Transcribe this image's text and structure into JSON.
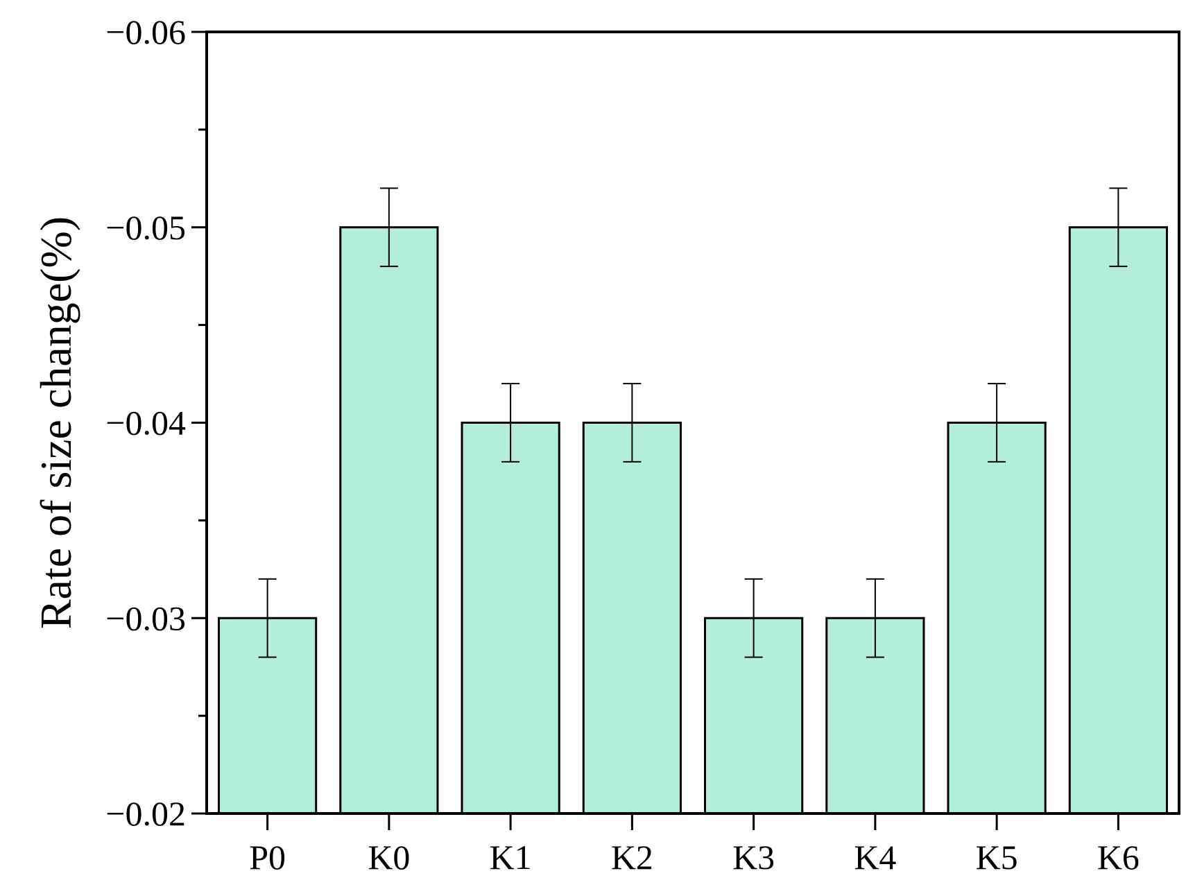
{
  "chart_data": {
    "type": "bar",
    "title": "",
    "xlabel": "",
    "ylabel": "Rate of size change(%)",
    "categories": [
      "P0",
      "K0",
      "K1",
      "K2",
      "K3",
      "K4",
      "K5",
      "K6"
    ],
    "values": [
      -0.03,
      -0.05,
      -0.04,
      -0.04,
      -0.03,
      -0.03,
      -0.04,
      -0.05
    ],
    "errors": [
      0.002,
      0.002,
      0.002,
      0.002,
      0.002,
      0.002,
      0.002,
      0.002
    ],
    "ylim": [
      -0.02,
      -0.06
    ],
    "yticks": [
      -0.02,
      -0.03,
      -0.04,
      -0.05,
      -0.06
    ],
    "ytick_labels": [
      "−0.02",
      "−0.03",
      "−0.04",
      "−0.05",
      "−0.06"
    ],
    "bar_color": "#b3eed8",
    "grid": false,
    "legend": "none"
  }
}
